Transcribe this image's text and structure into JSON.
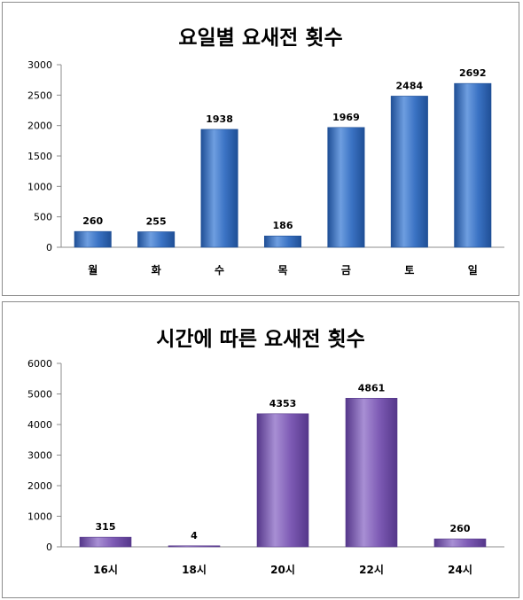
{
  "chart_data": [
    {
      "type": "bar",
      "title": "요일별 요새전 횟수",
      "categories": [
        "월",
        "화",
        "수",
        "목",
        "금",
        "토",
        "일"
      ],
      "values": [
        260,
        255,
        1938,
        186,
        1969,
        2484,
        2692
      ],
      "xlabel": "",
      "ylabel": "",
      "ylim": [
        0,
        3000
      ],
      "yticks": [
        0,
        500,
        1000,
        1500,
        2000,
        2500,
        3000
      ],
      "grid": false,
      "bar_color": "#3b73c4",
      "bar_color_dark": "#1f4f96",
      "bar_color_light": "#6e9ee0"
    },
    {
      "type": "bar",
      "title": "시간에 따른 요새전 횟수",
      "categories": [
        "16시",
        "18시",
        "20시",
        "22시",
        "24시"
      ],
      "values": [
        315,
        4,
        4353,
        4861,
        260
      ],
      "xlabel": "",
      "ylabel": "",
      "ylim": [
        0,
        6000
      ],
      "yticks": [
        0,
        1000,
        2000,
        3000,
        4000,
        5000,
        6000
      ],
      "grid": false,
      "bar_color": "#7e5bb5",
      "bar_color_dark": "#55378a",
      "bar_color_light": "#a88fd4"
    }
  ]
}
